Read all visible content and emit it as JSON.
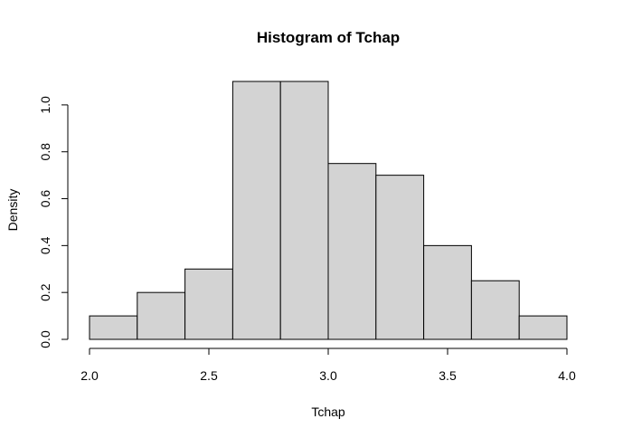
{
  "chart_data": {
    "type": "bar",
    "title": "Histogram of Tchap",
    "xlabel": "Tchap",
    "ylabel": "Density",
    "bins": [
      {
        "start": 2.0,
        "end": 2.2,
        "density": 0.1
      },
      {
        "start": 2.2,
        "end": 2.4,
        "density": 0.2
      },
      {
        "start": 2.4,
        "end": 2.6,
        "density": 0.3
      },
      {
        "start": 2.6,
        "end": 2.8,
        "density": 1.1
      },
      {
        "start": 2.8,
        "end": 3.0,
        "density": 1.1
      },
      {
        "start": 3.0,
        "end": 3.2,
        "density": 0.75
      },
      {
        "start": 3.2,
        "end": 3.4,
        "density": 0.7
      },
      {
        "start": 3.4,
        "end": 3.6,
        "density": 0.4
      },
      {
        "start": 3.6,
        "end": 3.8,
        "density": 0.25
      },
      {
        "start": 3.8,
        "end": 4.0,
        "density": 0.1
      }
    ],
    "x_ticks": [
      2.0,
      2.5,
      3.0,
      3.5,
      4.0
    ],
    "x_tick_labels": [
      "2.0",
      "2.5",
      "3.0",
      "3.5",
      "4.0"
    ],
    "y_ticks": [
      0.0,
      0.2,
      0.4,
      0.6,
      0.8,
      1.0
    ],
    "y_tick_labels": [
      "0.0",
      "0.2",
      "0.4",
      "0.6",
      "0.8",
      "1.0"
    ],
    "xlim": [
      2.0,
      4.0
    ],
    "ylim": [
      0,
      1.1
    ],
    "grid": false,
    "colors": {
      "bar_fill": "#d3d3d3",
      "bar_stroke": "#000000"
    }
  }
}
